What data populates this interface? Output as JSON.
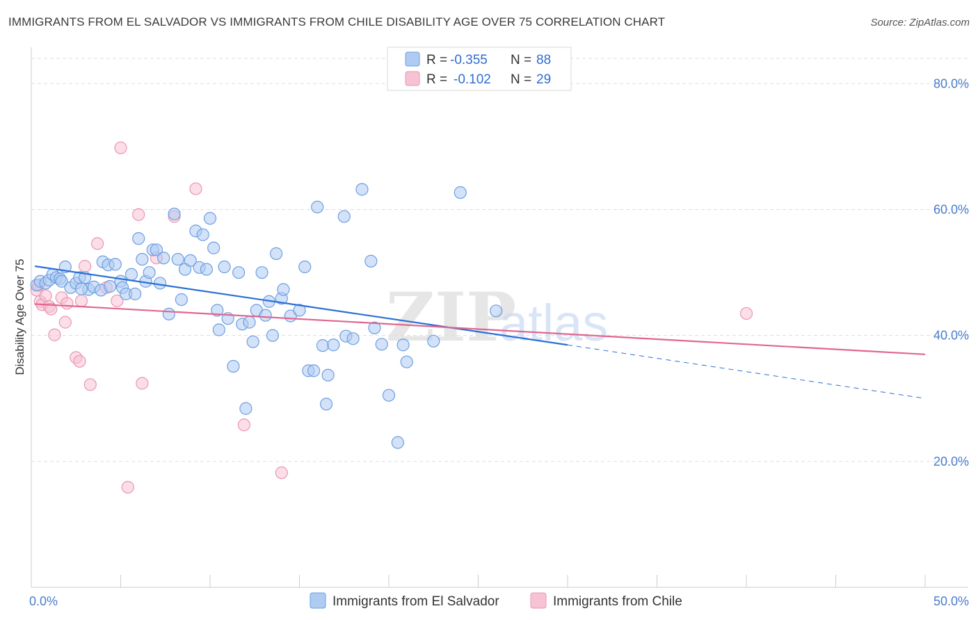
{
  "title": "IMMIGRANTS FROM EL SALVADOR VS IMMIGRANTS FROM CHILE DISABILITY AGE OVER 75 CORRELATION CHART",
  "source": "Source: ZipAtlas.com",
  "watermark": {
    "zip": "ZIP",
    "atlas": "atlas"
  },
  "colors": {
    "blue_fill": "#aecbf2",
    "blue_stroke": "#6b9fe0",
    "blue_line": "#2a6fd4",
    "pink_fill": "#f7c3d4",
    "pink_stroke": "#e996b3",
    "pink_line": "#e06690",
    "grid": "#dddddd",
    "axis_text": "#4a7cc9"
  },
  "legend": {
    "rows": [
      {
        "r_label": "R =",
        "r_value": "-0.355",
        "n_label": "N =",
        "n_value": "88",
        "series": "blue"
      },
      {
        "r_label": "R =",
        "r_value": "-0.102",
        "n_label": "N =",
        "n_value": "29",
        "series": "pink"
      }
    ]
  },
  "chart_data": {
    "type": "scatter",
    "title": "IMMIGRANTS FROM EL SALVADOR VS IMMIGRANTS FROM CHILE DISABILITY AGE OVER 75 CORRELATION CHART",
    "xlabel": "",
    "ylabel": "Disability Age Over 75",
    "xlim": [
      0,
      50
    ],
    "ylim": [
      0,
      85
    ],
    "x_tick_labels": [
      {
        "value": 0,
        "label": "0.0%"
      },
      {
        "value": 50,
        "label": "50.0%"
      }
    ],
    "y_tick_labels": [
      {
        "value": 20,
        "label": "20.0%"
      },
      {
        "value": 40,
        "label": "40.0%"
      },
      {
        "value": 60,
        "label": "60.0%"
      },
      {
        "value": 80,
        "label": "80.0%"
      }
    ],
    "x_minor_ticks": [
      0,
      5,
      10,
      15,
      20,
      25,
      30,
      35,
      40,
      45,
      50
    ],
    "grid": true,
    "series": [
      {
        "name": "Immigrants from El Salvador",
        "color": "blue",
        "trend": {
          "x0": 0.2,
          "y0": 51.0,
          "x1": 30.0,
          "y1": 38.5,
          "dash_x1": 50.0,
          "dash_y1": 30.0
        },
        "points": [
          [
            0.3,
            48.0
          ],
          [
            0.5,
            48.6
          ],
          [
            0.8,
            48.3
          ],
          [
            1.0,
            48.8
          ],
          [
            1.2,
            49.7
          ],
          [
            1.4,
            49.2
          ],
          [
            1.6,
            49.0
          ],
          [
            1.7,
            48.6
          ],
          [
            1.9,
            50.9
          ],
          [
            2.2,
            47.6
          ],
          [
            2.5,
            48.3
          ],
          [
            2.7,
            49.2
          ],
          [
            3.0,
            49.2
          ],
          [
            3.2,
            47.3
          ],
          [
            3.5,
            47.7
          ],
          [
            3.9,
            47.2
          ],
          [
            4.0,
            51.7
          ],
          [
            4.3,
            51.2
          ],
          [
            4.7,
            51.3
          ],
          [
            5.0,
            48.6
          ],
          [
            5.1,
            47.6
          ],
          [
            5.3,
            46.6
          ],
          [
            5.6,
            49.7
          ],
          [
            5.8,
            46.6
          ],
          [
            6.0,
            55.4
          ],
          [
            6.2,
            52.1
          ],
          [
            6.4,
            48.6
          ],
          [
            6.6,
            50.0
          ],
          [
            6.8,
            53.6
          ],
          [
            7.0,
            53.6
          ],
          [
            7.2,
            48.3
          ],
          [
            7.4,
            52.3
          ],
          [
            7.7,
            43.4
          ],
          [
            8.0,
            59.3
          ],
          [
            8.2,
            52.1
          ],
          [
            8.4,
            45.7
          ],
          [
            8.6,
            50.5
          ],
          [
            8.9,
            51.9
          ],
          [
            9.2,
            56.6
          ],
          [
            9.4,
            50.8
          ],
          [
            9.6,
            56.0
          ],
          [
            9.8,
            50.5
          ],
          [
            10.0,
            58.6
          ],
          [
            10.2,
            53.9
          ],
          [
            10.4,
            44.0
          ],
          [
            10.5,
            40.9
          ],
          [
            10.8,
            50.9
          ],
          [
            11.0,
            42.7
          ],
          [
            11.3,
            35.1
          ],
          [
            11.6,
            50.0
          ],
          [
            11.8,
            41.8
          ],
          [
            12.0,
            28.4
          ],
          [
            12.2,
            42.1
          ],
          [
            12.4,
            39.0
          ],
          [
            12.6,
            44.0
          ],
          [
            12.9,
            50.0
          ],
          [
            13.1,
            43.2
          ],
          [
            13.3,
            45.4
          ],
          [
            13.5,
            40.0
          ],
          [
            13.7,
            53.0
          ],
          [
            14.0,
            45.9
          ],
          [
            14.1,
            47.3
          ],
          [
            14.5,
            43.1
          ],
          [
            15.0,
            44.0
          ],
          [
            15.3,
            50.9
          ],
          [
            15.5,
            34.4
          ],
          [
            15.8,
            34.4
          ],
          [
            16.0,
            60.4
          ],
          [
            16.3,
            38.4
          ],
          [
            16.5,
            29.1
          ],
          [
            16.6,
            33.7
          ],
          [
            16.9,
            38.5
          ],
          [
            17.5,
            58.9
          ],
          [
            17.6,
            39.9
          ],
          [
            18.0,
            39.5
          ],
          [
            18.5,
            63.2
          ],
          [
            19.0,
            51.8
          ],
          [
            19.2,
            41.2
          ],
          [
            19.6,
            38.6
          ],
          [
            20.0,
            30.5
          ],
          [
            20.5,
            23.0
          ],
          [
            20.8,
            38.5
          ],
          [
            21.0,
            35.8
          ],
          [
            22.5,
            39.1
          ],
          [
            24.0,
            62.7
          ],
          [
            26.0,
            43.9
          ],
          [
            2.8,
            47.4
          ],
          [
            4.4,
            47.8
          ]
        ]
      },
      {
        "name": "Immigrants from Chile",
        "color": "pink",
        "trend": {
          "x0": 0.2,
          "y0": 45.0,
          "x1": 50.0,
          "y1": 37.0
        },
        "points": [
          [
            0.3,
            47.2
          ],
          [
            0.4,
            48.0
          ],
          [
            0.5,
            45.4
          ],
          [
            0.6,
            44.9
          ],
          [
            0.8,
            46.3
          ],
          [
            1.0,
            44.6
          ],
          [
            1.1,
            44.2
          ],
          [
            1.3,
            40.1
          ],
          [
            1.7,
            46.0
          ],
          [
            1.9,
            42.1
          ],
          [
            2.0,
            45.1
          ],
          [
            2.5,
            36.5
          ],
          [
            2.8,
            45.5
          ],
          [
            2.7,
            35.9
          ],
          [
            3.0,
            51.0
          ],
          [
            3.3,
            32.2
          ],
          [
            3.7,
            54.6
          ],
          [
            4.2,
            47.6
          ],
          [
            4.8,
            45.5
          ],
          [
            5.0,
            69.8
          ],
          [
            5.4,
            15.9
          ],
          [
            6.0,
            59.2
          ],
          [
            6.2,
            32.4
          ],
          [
            7.0,
            52.3
          ],
          [
            8.0,
            58.9
          ],
          [
            9.2,
            63.3
          ],
          [
            11.9,
            25.8
          ],
          [
            14.0,
            18.2
          ],
          [
            40.0,
            43.5
          ]
        ]
      }
    ]
  },
  "bottom_legend": [
    {
      "label": "Immigrants from El Salvador",
      "series": "blue"
    },
    {
      "label": "Immigrants from Chile",
      "series": "pink"
    }
  ]
}
